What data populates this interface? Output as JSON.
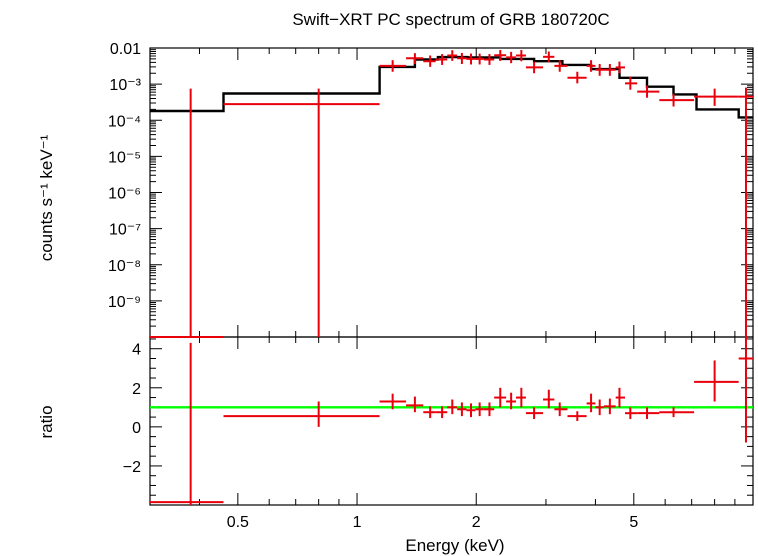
{
  "chart_data": [
    {
      "type": "scatter",
      "title": "Swift−XRT PC spectrum of GRB 180720C",
      "xlabel": "Energy (keV)",
      "ylabel": "counts s⁻¹ keV⁻¹",
      "xscale": "log",
      "yscale": "log",
      "xlim": [
        0.3,
        10
      ],
      "ylim": [
        1e-10,
        0.01
      ],
      "yticks": [
        {
          "value": 0.01,
          "label": "0.01"
        },
        {
          "value": 0.001,
          "label": "10⁻³"
        },
        {
          "value": 0.0001,
          "label": "10⁻⁴"
        },
        {
          "value": 1e-05,
          "label": "10⁻⁵"
        },
        {
          "value": 1e-06,
          "label": "10⁻⁶"
        },
        {
          "value": 1e-07,
          "label": "10⁻⁷"
        },
        {
          "value": 1e-08,
          "label": "10⁻⁸"
        },
        {
          "value": 1e-09,
          "label": "10⁻⁹"
        }
      ],
      "series": [
        {
          "kind": "model-step",
          "color": "#000000",
          "points": [
            {
              "x0": 0.3,
              "x1": 0.46,
              "y": 0.00018
            },
            {
              "x0": 0.46,
              "x1": 1.14,
              "y": 0.00055
            },
            {
              "x0": 1.14,
              "x1": 1.4,
              "y": 0.003
            },
            {
              "x0": 1.4,
              "x1": 1.6,
              "y": 0.0048
            },
            {
              "x0": 1.6,
              "x1": 1.9,
              "y": 0.0056
            },
            {
              "x0": 1.9,
              "x1": 2.3,
              "y": 0.0055
            },
            {
              "x0": 2.3,
              "x1": 2.8,
              "y": 0.005
            },
            {
              "x0": 2.8,
              "x1": 3.3,
              "y": 0.0043
            },
            {
              "x0": 3.3,
              "x1": 3.9,
              "y": 0.0034
            },
            {
              "x0": 3.9,
              "x1": 4.6,
              "y": 0.0026
            },
            {
              "x0": 4.6,
              "x1": 5.4,
              "y": 0.0015
            },
            {
              "x0": 5.4,
              "x1": 6.3,
              "y": 0.00085
            },
            {
              "x0": 6.3,
              "x1": 7.2,
              "y": 0.00052
            },
            {
              "x0": 7.2,
              "x1": 9.2,
              "y": 0.0002
            },
            {
              "x0": 9.2,
              "x1": 10,
              "y": 0.00012
            }
          ]
        },
        {
          "kind": "data-crosses",
          "color": "#e8000b",
          "points": [
            {
              "x": 0.38,
              "x0": 0.3,
              "x1": 0.46,
              "y": 1e-10,
              "ylo": 1e-10,
              "yhi": 0.00075
            },
            {
              "x": 0.8,
              "x0": 0.46,
              "x1": 1.14,
              "y": 0.00028,
              "ylo": 1e-10,
              "yhi": 0.00075
            },
            {
              "x": 1.23,
              "x0": 1.14,
              "x1": 1.33,
              "y": 0.0032,
              "ylo": 0.0022,
              "yhi": 0.0046
            },
            {
              "x": 1.4,
              "x0": 1.33,
              "x1": 1.47,
              "y": 0.0052,
              "ylo": 0.0036,
              "yhi": 0.0072
            },
            {
              "x": 1.53,
              "x0": 1.47,
              "x1": 1.58,
              "y": 0.0043,
              "ylo": 0.003,
              "yhi": 0.0062
            },
            {
              "x": 1.64,
              "x0": 1.58,
              "x1": 1.69,
              "y": 0.0048,
              "ylo": 0.0034,
              "yhi": 0.0068
            },
            {
              "x": 1.74,
              "x0": 1.69,
              "x1": 1.79,
              "y": 0.0062,
              "ylo": 0.0044,
              "yhi": 0.0087
            },
            {
              "x": 1.84,
              "x0": 1.79,
              "x1": 1.89,
              "y": 0.0052,
              "ylo": 0.0036,
              "yhi": 0.0073
            },
            {
              "x": 1.94,
              "x0": 1.89,
              "x1": 1.99,
              "y": 0.005,
              "ylo": 0.0035,
              "yhi": 0.007
            },
            {
              "x": 2.04,
              "x0": 1.99,
              "x1": 2.09,
              "y": 0.005,
              "ylo": 0.0035,
              "yhi": 0.007
            },
            {
              "x": 2.16,
              "x0": 2.09,
              "x1": 2.22,
              "y": 0.0048,
              "ylo": 0.0034,
              "yhi": 0.0068
            },
            {
              "x": 2.3,
              "x0": 2.22,
              "x1": 2.38,
              "y": 0.0063,
              "ylo": 0.0044,
              "yhi": 0.0088
            },
            {
              "x": 2.45,
              "x0": 2.38,
              "x1": 2.52,
              "y": 0.0055,
              "ylo": 0.0038,
              "yhi": 0.0078
            },
            {
              "x": 2.6,
              "x0": 2.52,
              "x1": 2.67,
              "y": 0.0062,
              "ylo": 0.0043,
              "yhi": 0.0088
            },
            {
              "x": 2.8,
              "x0": 2.67,
              "x1": 2.95,
              "y": 0.0029,
              "ylo": 0.002,
              "yhi": 0.0042
            },
            {
              "x": 3.05,
              "x0": 2.95,
              "x1": 3.15,
              "y": 0.0057,
              "ylo": 0.004,
              "yhi": 0.008
            },
            {
              "x": 3.25,
              "x0": 3.15,
              "x1": 3.4,
              "y": 0.0032,
              "ylo": 0.0022,
              "yhi": 0.0046
            },
            {
              "x": 3.6,
              "x0": 3.4,
              "x1": 3.8,
              "y": 0.0015,
              "ylo": 0.00105,
              "yhi": 0.0022
            },
            {
              "x": 3.9,
              "x0": 3.8,
              "x1": 4.0,
              "y": 0.0032,
              "ylo": 0.0022,
              "yhi": 0.0046
            },
            {
              "x": 4.1,
              "x0": 4.0,
              "x1": 4.2,
              "y": 0.0025,
              "ylo": 0.0017,
              "yhi": 0.0036
            },
            {
              "x": 4.35,
              "x0": 4.2,
              "x1": 4.5,
              "y": 0.0025,
              "ylo": 0.0017,
              "yhi": 0.0036
            },
            {
              "x": 4.6,
              "x0": 4.5,
              "x1": 4.75,
              "y": 0.0029,
              "ylo": 0.002,
              "yhi": 0.0042
            },
            {
              "x": 4.9,
              "x0": 4.75,
              "x1": 5.1,
              "y": 0.00105,
              "ylo": 0.0007,
              "yhi": 0.0016
            },
            {
              "x": 5.4,
              "x0": 5.1,
              "x1": 5.8,
              "y": 0.00062,
              "ylo": 0.00042,
              "yhi": 0.00092
            },
            {
              "x": 6.3,
              "x0": 5.8,
              "x1": 7.1,
              "y": 0.00036,
              "ylo": 0.00024,
              "yhi": 0.00054
            },
            {
              "x": 8.0,
              "x0": 7.1,
              "x1": 9.2,
              "y": 0.00045,
              "ylo": 0.00025,
              "yhi": 0.00075
            },
            {
              "x": 9.6,
              "x0": 9.2,
              "x1": 10.0,
              "y": 0.00045,
              "ylo": 1e-10,
              "yhi": 0.0008
            }
          ]
        }
      ]
    },
    {
      "type": "scatter",
      "xlabel": "Energy (keV)",
      "ylabel": "ratio",
      "xscale": "log",
      "yscale": "linear",
      "xlim": [
        0.3,
        10
      ],
      "ylim": [
        -4,
        4.6
      ],
      "xticks": [
        {
          "value": 0.5,
          "label": "0.5"
        },
        {
          "value": 1,
          "label": "1"
        },
        {
          "value": 2,
          "label": "2"
        },
        {
          "value": 5,
          "label": "5"
        }
      ],
      "yticks": [
        {
          "value": 4,
          "label": "4"
        },
        {
          "value": 2,
          "label": "2"
        },
        {
          "value": 0,
          "label": "0"
        },
        {
          "value": -2,
          "label": "−2"
        }
      ],
      "reference_line": {
        "y": 1,
        "color": "#00ff00"
      },
      "series": [
        {
          "kind": "data-crosses",
          "color": "#e8000b",
          "points": [
            {
              "x": 0.38,
              "x0": 0.3,
              "x1": 0.46,
              "y": -3.85,
              "ylo": -4.0,
              "yhi": 4.3
            },
            {
              "x": 0.8,
              "x0": 0.46,
              "x1": 1.14,
              "y": 0.55,
              "ylo": 0.0,
              "yhi": 1.3
            },
            {
              "x": 1.23,
              "x0": 1.14,
              "x1": 1.33,
              "y": 1.3,
              "ylo": 0.9,
              "yhi": 1.7
            },
            {
              "x": 1.4,
              "x0": 1.33,
              "x1": 1.47,
              "y": 1.1,
              "ylo": 0.75,
              "yhi": 1.55
            },
            {
              "x": 1.53,
              "x0": 1.47,
              "x1": 1.58,
              "y": 0.75,
              "ylo": 0.45,
              "yhi": 1.05
            },
            {
              "x": 1.64,
              "x0": 1.58,
              "x1": 1.69,
              "y": 0.75,
              "ylo": 0.45,
              "yhi": 1.05
            },
            {
              "x": 1.74,
              "x0": 1.69,
              "x1": 1.79,
              "y": 1.0,
              "ylo": 0.65,
              "yhi": 1.4
            },
            {
              "x": 1.84,
              "x0": 1.79,
              "x1": 1.89,
              "y": 0.9,
              "ylo": 0.55,
              "yhi": 1.25
            },
            {
              "x": 1.94,
              "x0": 1.89,
              "x1": 1.99,
              "y": 0.85,
              "ylo": 0.5,
              "yhi": 1.2
            },
            {
              "x": 2.04,
              "x0": 1.99,
              "x1": 2.09,
              "y": 0.9,
              "ylo": 0.55,
              "yhi": 1.25
            },
            {
              "x": 2.16,
              "x0": 2.09,
              "x1": 2.22,
              "y": 0.9,
              "ylo": 0.55,
              "yhi": 1.25
            },
            {
              "x": 2.3,
              "x0": 2.22,
              "x1": 2.38,
              "y": 1.5,
              "ylo": 1.0,
              "yhi": 2.0
            },
            {
              "x": 2.45,
              "x0": 2.38,
              "x1": 2.52,
              "y": 1.3,
              "ylo": 0.9,
              "yhi": 1.75
            },
            {
              "x": 2.6,
              "x0": 2.52,
              "x1": 2.67,
              "y": 1.5,
              "ylo": 1.0,
              "yhi": 2.0
            },
            {
              "x": 2.8,
              "x0": 2.67,
              "x1": 2.95,
              "y": 0.7,
              "ylo": 0.4,
              "yhi": 1.0
            },
            {
              "x": 3.05,
              "x0": 2.95,
              "x1": 3.15,
              "y": 1.4,
              "ylo": 0.95,
              "yhi": 1.9
            },
            {
              "x": 3.25,
              "x0": 3.15,
              "x1": 3.4,
              "y": 0.9,
              "ylo": 0.55,
              "yhi": 1.25
            },
            {
              "x": 3.6,
              "x0": 3.4,
              "x1": 3.8,
              "y": 0.55,
              "ylo": 0.3,
              "yhi": 0.8
            },
            {
              "x": 3.9,
              "x0": 3.8,
              "x1": 4.0,
              "y": 1.2,
              "ylo": 0.75,
              "yhi": 1.7
            },
            {
              "x": 4.1,
              "x0": 4.0,
              "x1": 4.2,
              "y": 1.0,
              "ylo": 0.6,
              "yhi": 1.4
            },
            {
              "x": 4.35,
              "x0": 4.2,
              "x1": 4.5,
              "y": 1.05,
              "ylo": 0.65,
              "yhi": 1.45
            },
            {
              "x": 4.6,
              "x0": 4.5,
              "x1": 4.75,
              "y": 1.5,
              "ylo": 1.0,
              "yhi": 2.0
            },
            {
              "x": 4.9,
              "x0": 4.75,
              "x1": 5.1,
              "y": 0.7,
              "ylo": 0.4,
              "yhi": 1.0
            },
            {
              "x": 5.4,
              "x0": 5.1,
              "x1": 5.8,
              "y": 0.7,
              "ylo": 0.4,
              "yhi": 1.0
            },
            {
              "x": 6.3,
              "x0": 5.8,
              "x1": 7.1,
              "y": 0.75,
              "ylo": 0.5,
              "yhi": 1.0
            },
            {
              "x": 8.0,
              "x0": 7.1,
              "x1": 9.2,
              "y": 2.3,
              "ylo": 1.3,
              "yhi": 3.4
            },
            {
              "x": 9.6,
              "x0": 9.2,
              "x1": 10.0,
              "y": 3.5,
              "ylo": -0.8,
              "yhi": 4.6
            }
          ]
        }
      ]
    }
  ]
}
